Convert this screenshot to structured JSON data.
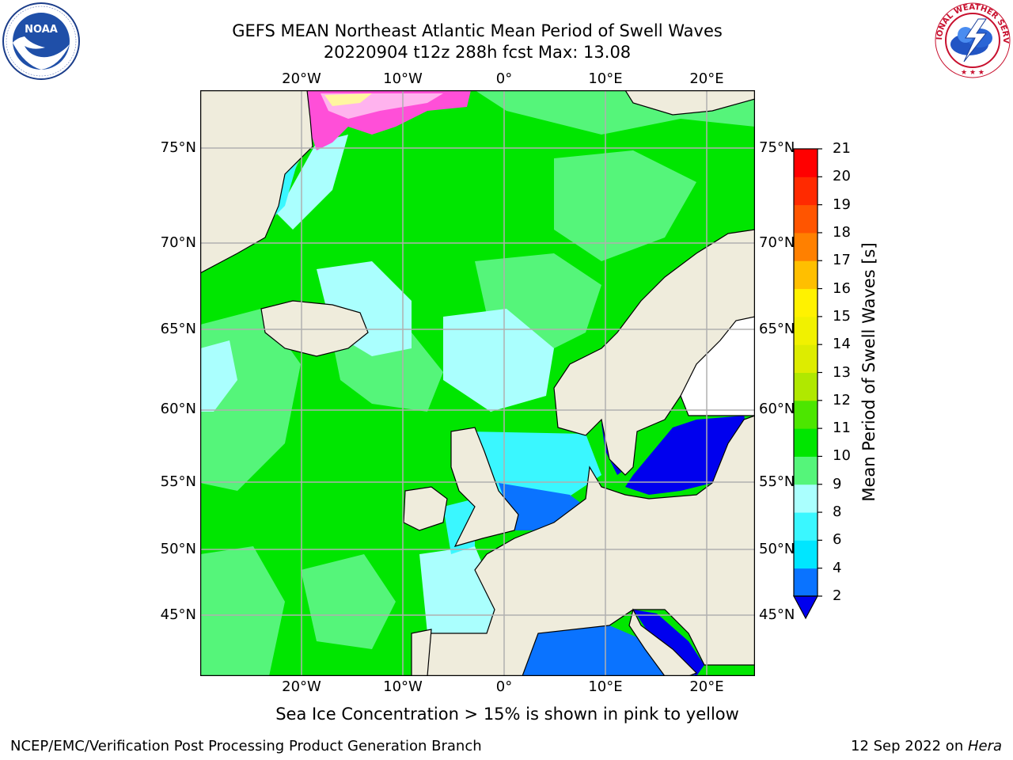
{
  "title_line1": "GEFS MEAN Northeast Atlantic Mean Period of Swell Waves",
  "title_line2": "20220904 t12z 288h fcst   Max: 13.08",
  "map": {
    "lon_labels": [
      "20°W",
      "10°W",
      "0°",
      "10°E",
      "20°E"
    ],
    "lat_labels": [
      "75°N",
      "70°N",
      "65°N",
      "60°N",
      "55°N",
      "50°N",
      "45°N"
    ],
    "colors": {
      "land": "#efecdc",
      "frame": "#000000",
      "grid": "#b0b0b0",
      "ice_land": "#ffffff",
      "low_period_sea": "#0000ee",
      "mediterranean": "#1560ee"
    }
  },
  "colorbar": {
    "title": "Mean Period of Swell Waves [s]",
    "ticks": [
      "21",
      "20",
      "19",
      "18",
      "17",
      "16",
      "15",
      "14",
      "13",
      "12",
      "11",
      "10",
      "9",
      "8",
      "6",
      "4",
      "2"
    ],
    "levels": [
      2,
      4,
      6,
      8,
      9,
      10,
      11,
      12,
      13,
      14,
      15,
      16,
      17,
      18,
      19,
      20,
      21
    ],
    "colors": [
      "#0a73ff",
      "#00e6ff",
      "#3af7ff",
      "#aafffe",
      "#55f57a",
      "#00e600",
      "#4ce600",
      "#b0e800",
      "#ddec00",
      "#f1f100",
      "#fff200",
      "#ffbf00",
      "#ff8000",
      "#ff5500",
      "#ff2a00",
      "#ff0000"
    ],
    "under_color": "#0000ee"
  },
  "note": "Sea Ice Concentration > 15% is shown in pink to yellow",
  "footer_left": "NCEP/EMC/Verification Post Processing Product Generation Branch",
  "footer_right_date": "12 Sep 2022 on ",
  "footer_right_host": "Hera",
  "logos": {
    "left": "NOAA",
    "right": "NATIONAL WEATHER SERVICE"
  }
}
